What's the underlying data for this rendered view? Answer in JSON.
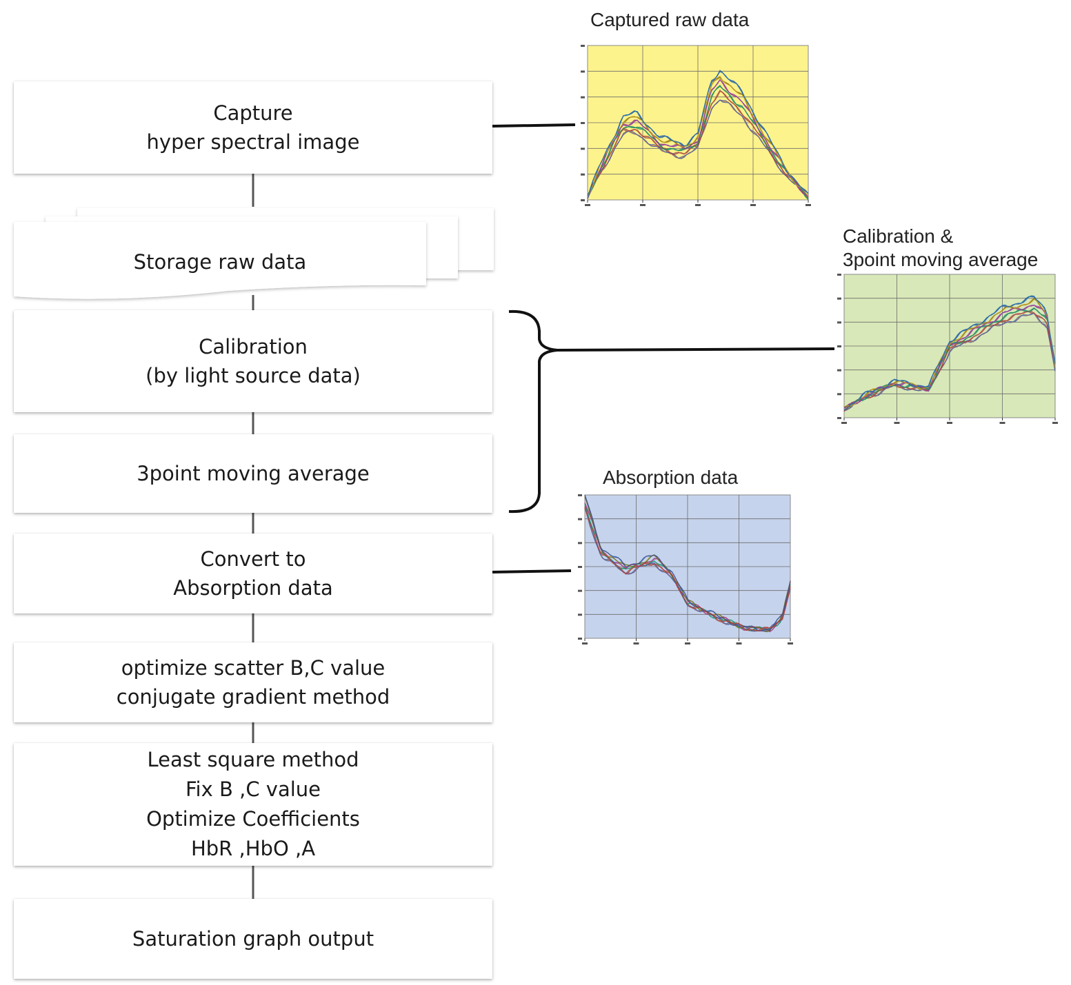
{
  "steps": [
    {
      "lines": [
        "Capture",
        "hyper spectral image"
      ]
    },
    {
      "lines": [
        "Storage raw data"
      ]
    },
    {
      "lines": [
        "Calibration",
        "(by light source data)"
      ]
    },
    {
      "lines": [
        "3point moving average"
      ]
    },
    {
      "lines": [
        "Convert to",
        "Absorption data"
      ]
    },
    {
      "lines": [
        "optimize scatter B,C value",
        "conjugate gradient method"
      ]
    },
    {
      "lines": [
        "Least square method",
        "Fix B ,C value",
        "Optimize Coefficients",
        "HbR ,HbO ,A"
      ]
    },
    {
      "lines": [
        "Saturation graph output"
      ]
    }
  ],
  "charts": [
    {
      "title_lines": [
        "Captured raw data"
      ],
      "background": "#fdf38c",
      "grid": true
    },
    {
      "title_lines": [
        "Calibration &",
        "3point moving average"
      ],
      "background": "#d8e8b8",
      "grid": true
    },
    {
      "title_lines": [
        "Absorption data"
      ],
      "background": "#c6d3ec",
      "grid": true
    }
  ],
  "colors": {
    "connector": "#111111",
    "flow_line": "#555555"
  }
}
